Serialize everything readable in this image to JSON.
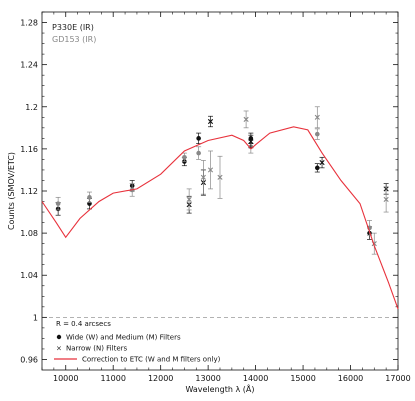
{
  "chart_data": {
    "type": "scatter",
    "xlabel": "Wavelength λ (Å)",
    "ylabel": "Counts (SMOV/ETC)",
    "xlim": [
      9500,
      17000
    ],
    "ylim": [
      0.95,
      1.29
    ],
    "xticks": [
      10000,
      11000,
      12000,
      13000,
      14000,
      15000,
      16000,
      17000
    ],
    "yticks": [
      0.96,
      1,
      1.04,
      1.08,
      1.12,
      1.16,
      1.2,
      1.24,
      1.28
    ],
    "xtick_labels": [
      "10000",
      "11000",
      "12000",
      "13000",
      "14000",
      "15000",
      "16000",
      "17000"
    ],
    "ytick_labels": [
      "0.96",
      "1",
      "1.04",
      "1.08",
      "1.12",
      "1.16",
      "1.2",
      "1.24",
      "1.28"
    ],
    "grid": false,
    "reference_line_y": 1.0,
    "annotations": [
      {
        "text": "P330E (IR)",
        "color": "#222222"
      },
      {
        "text": "GD153 (IR)",
        "color": "#888888"
      }
    ],
    "aperture_text": "R = 0.4 arcsecs",
    "legend": [
      {
        "marker": "circle",
        "label": "Wide (W) and Medium (M) Filters"
      },
      {
        "marker": "cross",
        "label": "Narrow (N) Filters"
      },
      {
        "marker": "line",
        "label": "Correction to ETC (W and M filters only)",
        "color": "#e8323c"
      }
    ],
    "series": [
      {
        "marker": "circle",
        "color": "#111111",
        "points": [
          {
            "x": 9840,
            "y": 1.103,
            "err": 0.006
          },
          {
            "x": 10500,
            "y": 1.108,
            "err": 0.005
          },
          {
            "x": 11400,
            "y": 1.125,
            "err": 0.005
          },
          {
            "x": 12500,
            "y": 1.148,
            "err": 0.004
          },
          {
            "x": 12800,
            "y": 1.17,
            "err": 0.005
          },
          {
            "x": 13900,
            "y": 1.17,
            "err": 0.005
          },
          {
            "x": 15300,
            "y": 1.142,
            "err": 0.004
          },
          {
            "x": 16400,
            "y": 1.08,
            "err": 0.006
          }
        ]
      },
      {
        "marker": "circle",
        "color": "#888888",
        "points": [
          {
            "x": 9840,
            "y": 1.108,
            "err": 0.006
          },
          {
            "x": 10500,
            "y": 1.114,
            "err": 0.005
          },
          {
            "x": 11400,
            "y": 1.121,
            "err": 0.006
          },
          {
            "x": 12500,
            "y": 1.152,
            "err": 0.004
          },
          {
            "x": 12800,
            "y": 1.156,
            "err": 0.006
          },
          {
            "x": 13900,
            "y": 1.162,
            "err": 0.006
          },
          {
            "x": 15300,
            "y": 1.174,
            "err": 0.005
          },
          {
            "x": 16400,
            "y": 1.085,
            "err": 0.007
          }
        ]
      },
      {
        "marker": "cross",
        "color": "#111111",
        "points": [
          {
            "x": 12600,
            "y": 1.107,
            "err": 0.008
          },
          {
            "x": 12900,
            "y": 1.128,
            "err": 0.012
          },
          {
            "x": 13050,
            "y": 1.186,
            "err": 0.005
          },
          {
            "x": 13900,
            "y": 1.167,
            "err": 0.006
          },
          {
            "x": 15400,
            "y": 1.147,
            "err": 0.005
          },
          {
            "x": 16750,
            "y": 1.122,
            "err": 0.005
          }
        ]
      },
      {
        "marker": "cross",
        "color": "#888888",
        "points": [
          {
            "x": 12600,
            "y": 1.112,
            "err": 0.01
          },
          {
            "x": 12900,
            "y": 1.133,
            "err": 0.016
          },
          {
            "x": 13050,
            "y": 1.14,
            "err": 0.018
          },
          {
            "x": 13250,
            "y": 1.133,
            "err": 0.02
          },
          {
            "x": 13800,
            "y": 1.188,
            "err": 0.008
          },
          {
            "x": 15300,
            "y": 1.19,
            "err": 0.01
          },
          {
            "x": 16500,
            "y": 1.07,
            "err": 0.01
          },
          {
            "x": 16750,
            "y": 1.112,
            "err": 0.012
          }
        ]
      },
      {
        "marker": "line",
        "color": "#e8323c",
        "points": [
          {
            "x": 9500,
            "y": 1.11
          },
          {
            "x": 9800,
            "y": 1.09
          },
          {
            "x": 10000,
            "y": 1.076
          },
          {
            "x": 10300,
            "y": 1.094
          },
          {
            "x": 10700,
            "y": 1.11
          },
          {
            "x": 11000,
            "y": 1.118
          },
          {
            "x": 11500,
            "y": 1.122
          },
          {
            "x": 12000,
            "y": 1.136
          },
          {
            "x": 12500,
            "y": 1.158
          },
          {
            "x": 13000,
            "y": 1.168
          },
          {
            "x": 13500,
            "y": 1.173
          },
          {
            "x": 13750,
            "y": 1.168
          },
          {
            "x": 13900,
            "y": 1.16
          },
          {
            "x": 14000,
            "y": 1.164
          },
          {
            "x": 14300,
            "y": 1.175
          },
          {
            "x": 14800,
            "y": 1.181
          },
          {
            "x": 15100,
            "y": 1.178
          },
          {
            "x": 15400,
            "y": 1.156
          },
          {
            "x": 15800,
            "y": 1.13
          },
          {
            "x": 16200,
            "y": 1.108
          },
          {
            "x": 16500,
            "y": 1.068
          },
          {
            "x": 16800,
            "y": 1.033
          },
          {
            "x": 17000,
            "y": 1.008
          }
        ]
      }
    ]
  }
}
